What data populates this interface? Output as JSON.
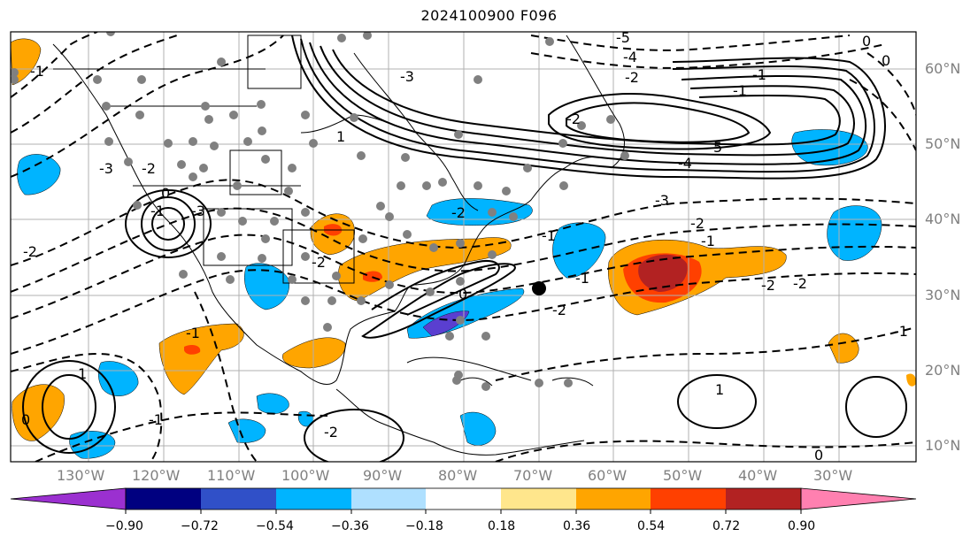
{
  "title": "2024100900 F096",
  "lat_labels": [
    "10°N",
    "20°N",
    "30°N",
    "40°N",
    "50°N",
    "60°N"
  ],
  "lon_labels": [
    "130°W",
    "120°W",
    "110°W",
    "100°W",
    "90°W",
    "80°W",
    "70°W",
    "60°W",
    "50°W",
    "40°W",
    "30°W"
  ],
  "colorbar": {
    "ticks": [
      "−0.90",
      "−0.72",
      "−0.54",
      "−0.36",
      "−0.18",
      "0.18",
      "0.36",
      "0.54",
      "0.72",
      "0.90"
    ],
    "colors": [
      "#9b30d0",
      "#000080",
      "#3050c8",
      "#00b4ff",
      "#afe0ff",
      "#ffffff",
      "#ffe68c",
      "#ffa500",
      "#ff4000",
      "#b22222",
      "#ff80b0"
    ]
  },
  "contour_labels": [
    "-5",
    "-4",
    "-3",
    "-2",
    "-1",
    "-1",
    "0",
    "0",
    "-2",
    "-3",
    "-2",
    "-1",
    "0",
    "-2",
    "-1",
    "-3",
    "-2",
    "-2",
    "1",
    "-1",
    "0",
    "-1",
    "-2",
    "-3",
    "0",
    "-2",
    "-1",
    "-4",
    "5",
    "-1",
    "1",
    "-1",
    "-2",
    "-2",
    "-2",
    "-1",
    "0",
    "1"
  ]
}
